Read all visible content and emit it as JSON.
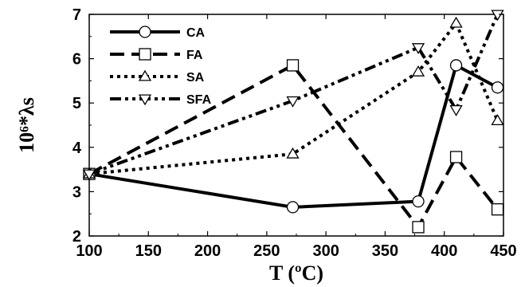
{
  "chart_data": {
    "type": "line",
    "xlabel": "T (ºC)",
    "ylabel": "10⁶*λs",
    "xlim": [
      100,
      450
    ],
    "ylim": [
      2,
      7
    ],
    "x_ticks": [
      100,
      150,
      200,
      250,
      300,
      350,
      400,
      450
    ],
    "y_ticks": [
      2,
      3,
      4,
      5,
      6,
      7
    ],
    "grid": false,
    "legend_position": "top-left",
    "series": [
      {
        "name": "CA",
        "marker": "circle",
        "dash": "solid",
        "x": [
          100,
          272,
          378,
          410,
          445
        ],
        "y": [
          3.4,
          2.65,
          2.78,
          5.85,
          5.35
        ]
      },
      {
        "name": "FA",
        "marker": "square",
        "dash": "long-dash",
        "x": [
          100,
          272,
          378,
          410,
          445
        ],
        "y": [
          3.4,
          5.85,
          2.2,
          3.78,
          2.6
        ]
      },
      {
        "name": "SA",
        "marker": "triangle-up",
        "dash": "dotted",
        "x": [
          100,
          272,
          378,
          410,
          445
        ],
        "y": [
          3.4,
          3.85,
          5.7,
          6.8,
          4.6
        ]
      },
      {
        "name": "SFA",
        "marker": "triangle-down",
        "dash": "dash-dot-dot",
        "x": [
          100,
          272,
          378,
          410,
          445
        ],
        "y": [
          3.4,
          5.05,
          6.25,
          4.85,
          7.0
        ]
      }
    ]
  }
}
